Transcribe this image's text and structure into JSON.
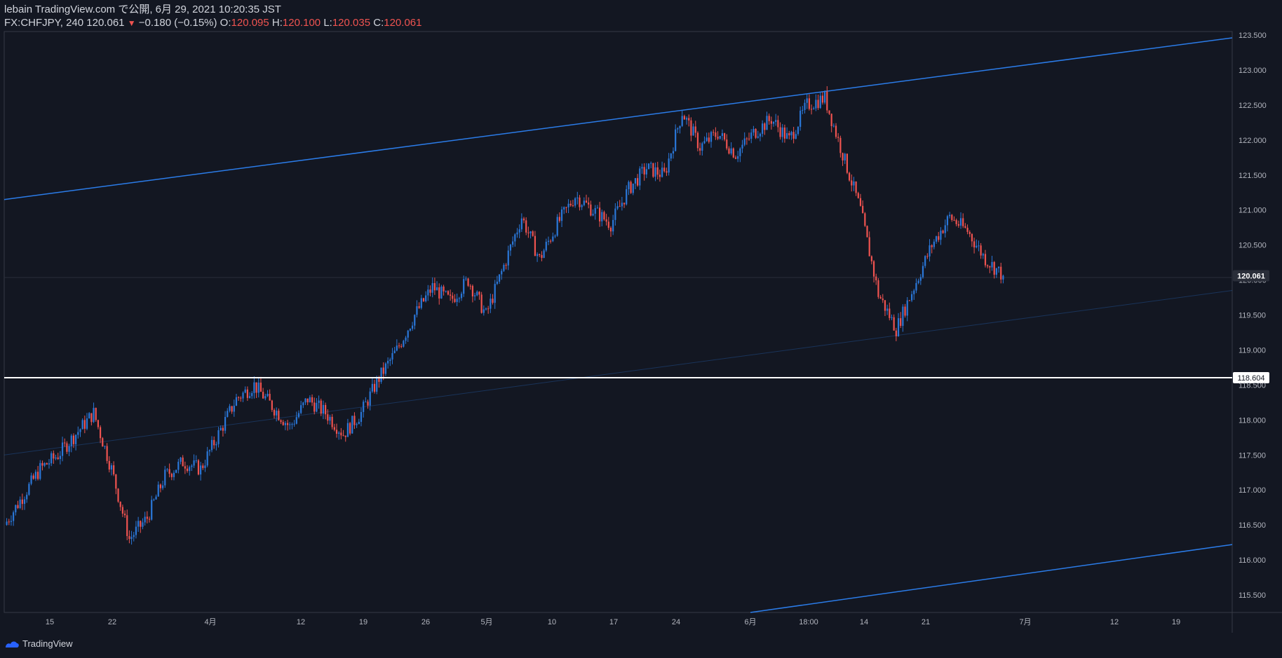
{
  "header": {
    "line1": "lebain TradingView.com で公開, 6月 29, 2021 10:20:35 JST",
    "symbol": "FX:CHFJPY, 240",
    "last": "120.061",
    "change_arrow": "▼",
    "change": "−0.180 (−0.15%)",
    "o_label": "O:",
    "o": "120.095",
    "h_label": "H:",
    "h": "120.100",
    "l_label": "L:",
    "l": "120.035",
    "c_label": "C:",
    "c": "120.061"
  },
  "footer": {
    "brand": "TradingView",
    "icon": "tradingview-logo-icon"
  },
  "colors": {
    "background": "#131722",
    "up": "#2a77d8",
    "down": "#ef5350",
    "trendline": "#2b7ce9",
    "horizontal": "#ffffff",
    "axis": "#b2b5be",
    "grid_border": "#363a45"
  },
  "chart_data": {
    "type": "candlestick",
    "symbol": "FX:CHFJPY",
    "interval": "240",
    "y_axis": {
      "ticks": [
        "123.500",
        "123.000",
        "122.500",
        "122.000",
        "121.500",
        "121.000",
        "120.500",
        "120.000",
        "119.500",
        "119.000",
        "118.500",
        "118.000",
        "117.500",
        "117.000",
        "116.500",
        "116.000",
        "115.500"
      ],
      "range": [
        115.25,
        123.55
      ]
    },
    "x_axis": {
      "ticks": [
        "15",
        "22",
        "4月",
        "12",
        "19",
        "26",
        "5月",
        "10",
        "17",
        "24",
        "6月",
        "18:00",
        "14",
        "21",
        "7月",
        "12",
        "19"
      ]
    },
    "path_points": [
      [
        "15",
        116.5
      ],
      [
        "15",
        116.9
      ],
      [
        "15",
        117.3
      ],
      [
        "15",
        117.5
      ],
      [
        "22",
        117.8
      ],
      [
        "22",
        118.1
      ],
      [
        "22",
        117.3
      ],
      [
        "22",
        116.3
      ],
      [
        "4月",
        116.6
      ],
      [
        "4月",
        117.2
      ],
      [
        "4月",
        117.4
      ],
      [
        "4月",
        117.3
      ],
      [
        "4月",
        117.8
      ],
      [
        "12",
        118.3
      ],
      [
        "12",
        118.5
      ],
      [
        "12",
        118.2
      ],
      [
        "19",
        117.9
      ],
      [
        "19",
        118.3
      ],
      [
        "19",
        118.1
      ],
      [
        "26",
        117.8
      ],
      [
        "26",
        118.1
      ],
      [
        "26",
        118.6
      ],
      [
        "26",
        119.0
      ],
      [
        "5月",
        119.5
      ],
      [
        "5月",
        119.9
      ],
      [
        "5月",
        119.7
      ],
      [
        "5月",
        120.0
      ],
      [
        "10",
        119.5
      ],
      [
        "10",
        120.2
      ],
      [
        "10",
        120.9
      ],
      [
        "10",
        120.3
      ],
      [
        "17",
        120.8
      ],
      [
        "17",
        121.2
      ],
      [
        "17",
        121.0
      ],
      [
        "24",
        120.8
      ],
      [
        "24",
        121.3
      ],
      [
        "24",
        121.6
      ],
      [
        "24",
        121.5
      ],
      [
        "6月",
        122.4
      ],
      [
        "6月",
        121.9
      ],
      [
        "6月",
        122.1
      ],
      [
        "18:00",
        121.8
      ],
      [
        "18:00",
        122.1
      ],
      [
        "18:00",
        122.3
      ],
      [
        "14",
        122.0
      ],
      [
        "14",
        122.5
      ],
      [
        "14",
        122.6
      ],
      [
        "14",
        121.8
      ],
      [
        "14",
        121.0
      ],
      [
        "21",
        119.8
      ],
      [
        "21",
        119.3
      ],
      [
        "21",
        119.9
      ],
      [
        "21",
        120.5
      ],
      [
        "7月",
        120.9
      ],
      [
        "7月",
        120.7
      ],
      [
        "7月",
        120.3
      ],
      [
        "7月",
        120.061
      ]
    ],
    "last_price": 120.061,
    "horizontal_line": {
      "price": 118.604,
      "label": "118.604"
    },
    "channel": {
      "upper": [
        [
          "start",
          121.15
        ],
        [
          "end",
          123.46
        ]
      ],
      "middle": [
        [
          "start",
          117.5
        ],
        [
          "end",
          119.85
        ]
      ],
      "lower": [
        [
          "6月",
          115.25
        ],
        [
          "end",
          116.22
        ]
      ]
    },
    "grid": false,
    "legend": "none"
  }
}
